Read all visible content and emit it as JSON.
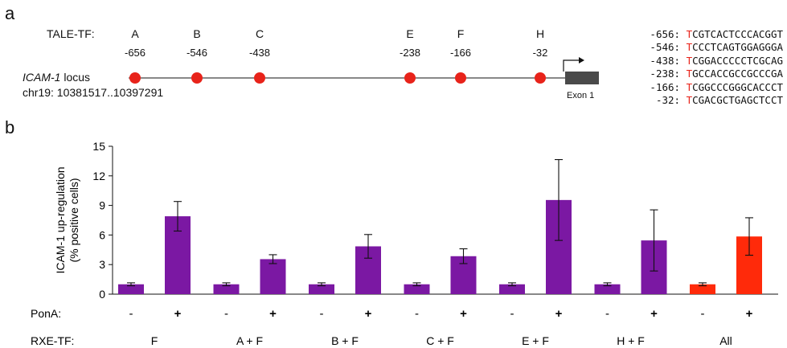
{
  "panel_a": {
    "letter": "a",
    "tale_label": "TALE-TF:",
    "locus_name": "ICAM-1",
    "locus_suffix": " locus",
    "locus_coords": "chr19: 10381517..10397291",
    "exon_label": "Exon 1",
    "site_color": "#e8231a",
    "sites": [
      {
        "letter": "A",
        "position": "-656"
      },
      {
        "letter": "B",
        "position": "-546"
      },
      {
        "letter": "C",
        "position": "-438"
      },
      {
        "letter": "E",
        "position": "-238"
      },
      {
        "letter": "F",
        "position": "-166"
      },
      {
        "letter": "H",
        "position": "-32"
      }
    ],
    "sequences": [
      {
        "pos": "-656:",
        "first": "T",
        "rest": "CGTCACTCCCACGGT"
      },
      {
        "pos": "-546:",
        "first": "T",
        "rest": "CCCTCAGTGGAGGGA"
      },
      {
        "pos": "-438:",
        "first": "T",
        "rest": "CGGACCCCCTCGCAG"
      },
      {
        "pos": "-238:",
        "first": "T",
        "rest": "GCCACCGCCGCCCGA"
      },
      {
        "pos": "-166:",
        "first": "T",
        "rest": "CGGCCCGGGCACCCT"
      },
      {
        "pos": "-32:",
        "first": "T",
        "rest": "CGACGCTGAGCTCCT"
      }
    ],
    "sequence_highlight_color": "#e8231a"
  },
  "panel_b": {
    "letter": "b",
    "pona_label": "PonA:",
    "rxe_label": "RXE-TF:"
  },
  "chart_data": {
    "type": "bar",
    "ylabel_line1": "ICAM-1 up-regulation",
    "ylabel_line2": "(% positive cells)",
    "ylim": [
      0,
      15
    ],
    "yticks": [
      "0",
      "3",
      "6",
      "9",
      "12",
      "15"
    ],
    "grid": false,
    "categories": [
      "F",
      "A + F",
      "B + F",
      "C + F",
      "E + F",
      "H + F",
      "All"
    ],
    "pona": [
      "-",
      "+"
    ],
    "series_colors": {
      "purple": "#7b18a3",
      "red": "#ff2a0a"
    },
    "bars": [
      {
        "group": "F",
        "pona": "-",
        "value": 1.0,
        "error": 0.15,
        "color": "purple"
      },
      {
        "group": "F",
        "pona": "+",
        "value": 7.9,
        "error": 1.5,
        "color": "purple"
      },
      {
        "group": "A + F",
        "pona": "-",
        "value": 1.0,
        "error": 0.15,
        "color": "purple"
      },
      {
        "group": "A + F",
        "pona": "+",
        "value": 3.55,
        "error": 0.45,
        "color": "purple"
      },
      {
        "group": "B + F",
        "pona": "-",
        "value": 1.0,
        "error": 0.15,
        "color": "purple"
      },
      {
        "group": "B + F",
        "pona": "+",
        "value": 4.85,
        "error": 1.2,
        "color": "purple"
      },
      {
        "group": "C + F",
        "pona": "-",
        "value": 1.0,
        "error": 0.15,
        "color": "purple"
      },
      {
        "group": "C + F",
        "pona": "+",
        "value": 3.85,
        "error": 0.75,
        "color": "purple"
      },
      {
        "group": "E + F",
        "pona": "-",
        "value": 1.0,
        "error": 0.15,
        "color": "purple"
      },
      {
        "group": "E + F",
        "pona": "+",
        "value": 9.55,
        "error": 4.1,
        "color": "purple"
      },
      {
        "group": "H + F",
        "pona": "-",
        "value": 1.0,
        "error": 0.15,
        "color": "purple"
      },
      {
        "group": "H + F",
        "pona": "+",
        "value": 5.45,
        "error": 3.1,
        "color": "purple"
      },
      {
        "group": "All",
        "pona": "-",
        "value": 1.0,
        "error": 0.15,
        "color": "red"
      },
      {
        "group": "All",
        "pona": "+",
        "value": 5.85,
        "error": 1.9,
        "color": "red"
      }
    ]
  }
}
